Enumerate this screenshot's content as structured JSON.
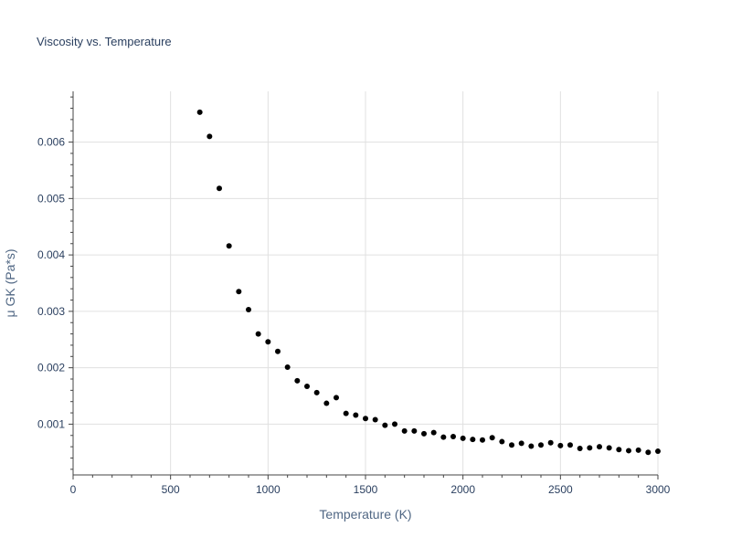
{
  "chart_data": {
    "type": "scatter",
    "title": "Viscosity vs. Temperature",
    "xlabel": "Temperature (K)",
    "ylabel": "μ GK (Pa*s)",
    "xlim": [
      0,
      3000
    ],
    "ylim": [
      0.0001,
      0.0069
    ],
    "x_ticks": [
      0,
      500,
      1000,
      1500,
      2000,
      2500,
      3000
    ],
    "x_tick_labels": [
      "0",
      "500",
      "1000",
      "1500",
      "2000",
      "2500",
      "3000"
    ],
    "y_ticks": [
      0.001,
      0.002,
      0.003,
      0.004,
      0.005,
      0.006
    ],
    "y_tick_labels": [
      "0.001",
      "0.002",
      "0.003",
      "0.004",
      "0.005",
      "0.006"
    ],
    "grid": true,
    "marker_color": "#000000",
    "series": [
      {
        "x": [
          650,
          700,
          750,
          800,
          850,
          900,
          950,
          1000,
          1050,
          1100,
          1150,
          1200,
          1250,
          1300,
          1350,
          1400,
          1450,
          1500,
          1550,
          1600,
          1650,
          1700,
          1750,
          1800,
          1850,
          1900,
          1950,
          2000,
          2050,
          2100,
          2150,
          2200,
          2250,
          2300,
          2350,
          2400,
          2450,
          2500,
          2550,
          2600,
          2650,
          2700,
          2750,
          2800,
          2850,
          2900,
          2950,
          3000
        ],
        "y": [
          0.00653,
          0.0061,
          0.00518,
          0.00416,
          0.00335,
          0.00303,
          0.0026,
          0.00246,
          0.00229,
          0.00201,
          0.00177,
          0.00167,
          0.00156,
          0.00137,
          0.00147,
          0.00119,
          0.00116,
          0.0011,
          0.00108,
          0.00098,
          0.001,
          0.00088,
          0.00088,
          0.00083,
          0.00085,
          0.00077,
          0.00078,
          0.00075,
          0.00073,
          0.00072,
          0.00076,
          0.00069,
          0.00063,
          0.00066,
          0.00061,
          0.00063,
          0.00067,
          0.00062,
          0.00063,
          0.00057,
          0.00058,
          0.0006,
          0.00058,
          0.00055,
          0.00053,
          0.00054,
          0.0005,
          0.00052
        ]
      }
    ]
  }
}
